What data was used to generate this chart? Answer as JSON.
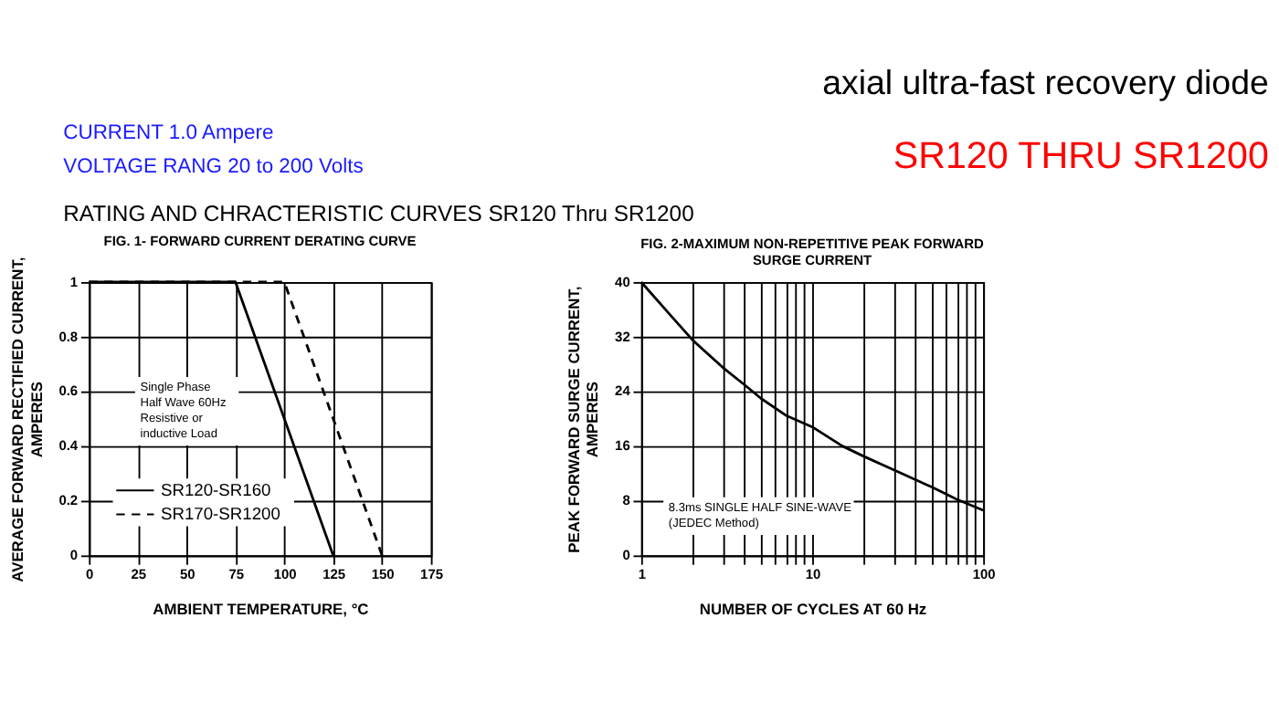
{
  "chart_data": [
    {
      "type": "other",
      "annotations": [
        "axial ultra-fast recovery diode",
        "CURRENT          1.0  Ampere",
        "VOLTAGE RANG      20  to  200  Volts",
        "SR120 THRU SR1200",
        "RATING AND CHRACTERISTIC CURVES SR120 Thru SR1200"
      ]
    },
    {
      "type": "line",
      "title": "FIG. 1- FORWARD CURRENT DERATING CURVE",
      "xlabel": "AMBIENT TEMPERATURE, °C",
      "ylabel": "AVERAGE FORWARD RECTIFIED CURRENT,\nAMPERES",
      "xlim": [
        0,
        175
      ],
      "xticks": [
        0,
        25,
        50,
        75,
        100,
        125,
        150,
        175
      ],
      "ylim": [
        0,
        1
      ],
      "yticks": [
        0,
        0.2,
        0.4,
        0.6,
        0.8,
        1
      ],
      "grid": true,
      "legend": "bottom left",
      "annotations": [
        "Single Phase\nHalf Wave 60Hz\nResistive or\ninductive Load"
      ],
      "series": [
        {
          "name": "SR120-SR160",
          "color": "#000000",
          "line_style": "solid",
          "x": [
            0,
            75,
            125
          ],
          "values": [
            1,
            1,
            0
          ]
        },
        {
          "name": "SR170-SR1200",
          "color": "#000000",
          "line_style": "dashed",
          "x": [
            0,
            100,
            150
          ],
          "values": [
            1,
            1,
            0
          ]
        }
      ]
    },
    {
      "type": "line",
      "title": "FIG. 2-MAXIMUM NON-REPETITIVE PEAK FORWARD\nSURGE CURRENT",
      "xlabel": "NUMBER OF CYCLES AT 60 Hz",
      "ylabel": "PEAK  FORWARD SURGE CURRENT,\nAMPERES",
      "log": "x",
      "xlim": [
        1,
        100
      ],
      "xticks": [
        1,
        {
          "value": 2,
          "label": null
        },
        {
          "value": 3,
          "label": null
        },
        {
          "value": 4,
          "label": null
        },
        {
          "value": 5,
          "label": null
        },
        {
          "value": 6,
          "label": null
        },
        {
          "value": 7,
          "label": null
        },
        {
          "value": 8,
          "label": null
        },
        {
          "value": 9,
          "label": null
        },
        10,
        {
          "value": 20,
          "label": null
        },
        {
          "value": 30,
          "label": null
        },
        {
          "value": 40,
          "label": null
        },
        {
          "value": 50,
          "label": null
        },
        {
          "value": 60,
          "label": null
        },
        {
          "value": 70,
          "label": null
        },
        {
          "value": 80,
          "label": null
        },
        {
          "value": 90,
          "label": null
        },
        100
      ],
      "ylim": [
        0,
        40
      ],
      "yticks": [
        0,
        8,
        16,
        24,
        32,
        40
      ],
      "grid": true,
      "annotations": [
        "8.3ms SINGLE HALF SINE-WAVE\n(JEDEC Method)"
      ],
      "series": [
        {
          "color": "#000000",
          "line_style": "solid",
          "x": [
            1,
            1.5,
            2,
            3,
            4,
            5,
            7,
            10,
            15,
            20,
            30,
            50,
            70,
            100
          ],
          "values": [
            40,
            35,
            31.5,
            27.5,
            25,
            23,
            20.5,
            18.8,
            16,
            14.5,
            12.5,
            10,
            8.2,
            6.6
          ]
        }
      ]
    }
  ]
}
